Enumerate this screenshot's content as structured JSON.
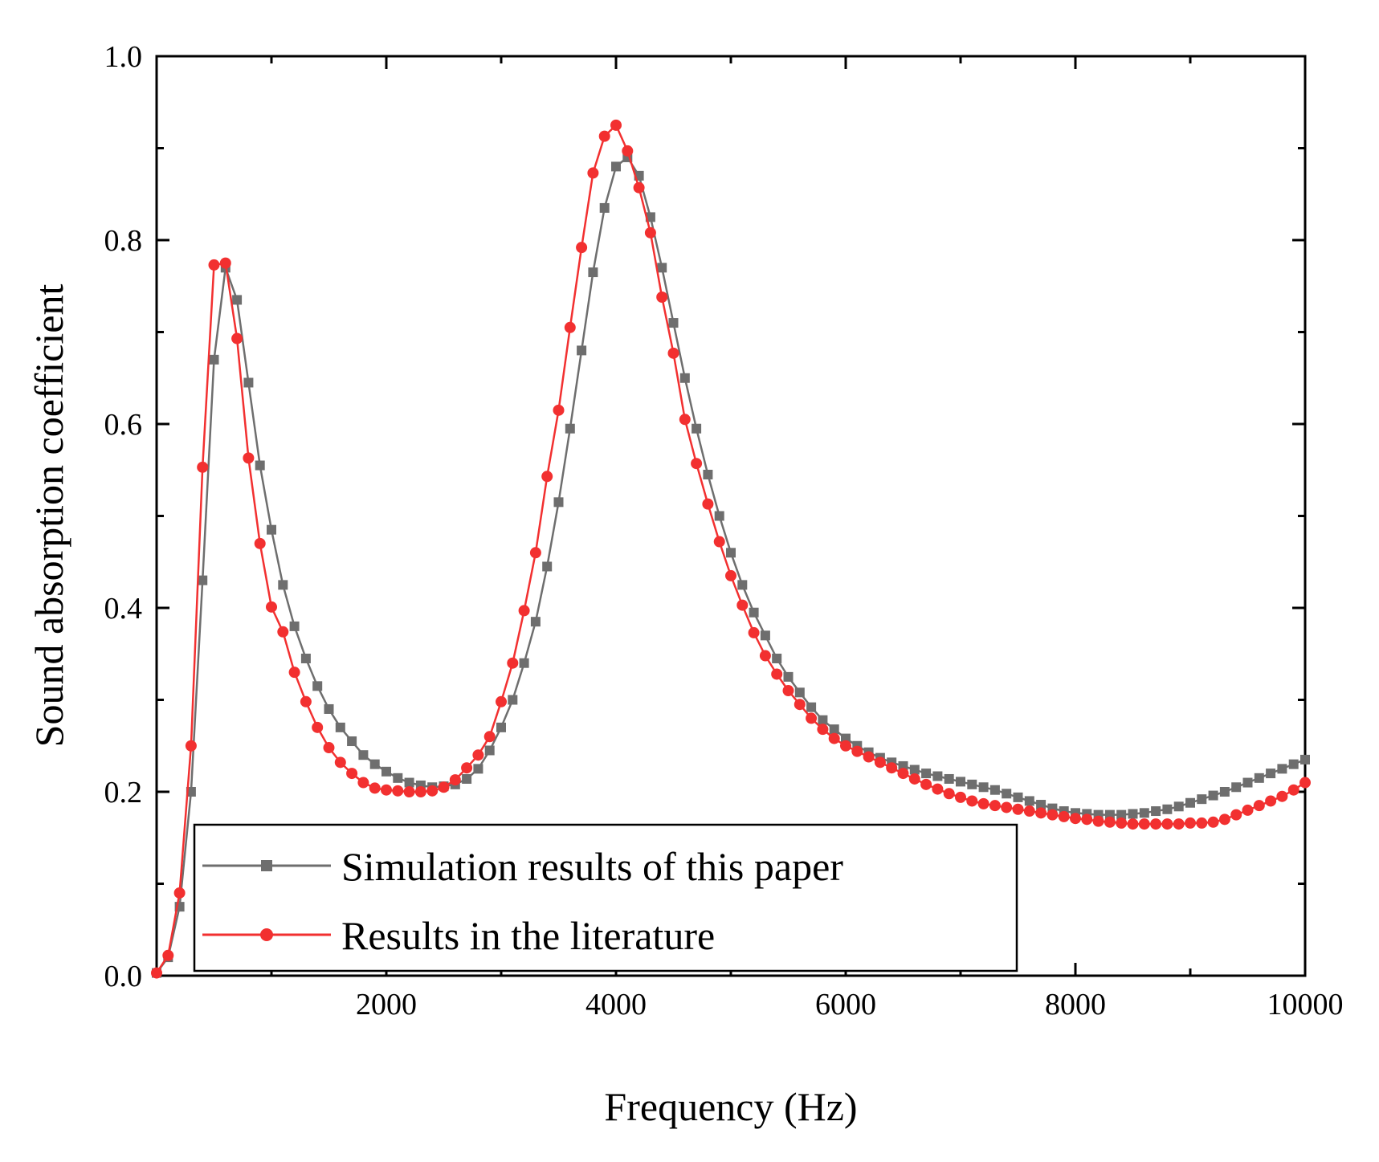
{
  "chart_data": {
    "type": "line",
    "title": "",
    "xlabel": "Frequency (Hz)",
    "ylabel": "Sound absorption coefficient",
    "xlim": [
      0,
      10000
    ],
    "ylim": [
      0.0,
      1.0
    ],
    "xticks": [
      2000,
      4000,
      6000,
      8000,
      10000
    ],
    "xtick_labels": [
      "2000",
      "4000",
      "6000",
      "8000",
      "10000"
    ],
    "yticks": [
      0.0,
      0.2,
      0.4,
      0.6,
      0.8,
      1.0
    ],
    "ytick_labels": [
      "0.0",
      "0.2",
      "0.4",
      "0.6",
      "0.8",
      "1.0"
    ],
    "legend_position": "bottom-left",
    "series": [
      {
        "name": "Simulation results of this paper",
        "color": "#6e6e6e",
        "marker": "square",
        "x": [
          0,
          100,
          200,
          300,
          400,
          500,
          600,
          700,
          800,
          900,
          1000,
          1100,
          1200,
          1300,
          1400,
          1500,
          1600,
          1700,
          1800,
          1900,
          2000,
          2100,
          2200,
          2300,
          2400,
          2500,
          2600,
          2700,
          2800,
          2900,
          3000,
          3100,
          3200,
          3300,
          3400,
          3500,
          3600,
          3700,
          3800,
          3900,
          4000,
          4100,
          4200,
          4300,
          4400,
          4500,
          4600,
          4700,
          4800,
          4900,
          5000,
          5100,
          5200,
          5300,
          5400,
          5500,
          5600,
          5700,
          5800,
          5900,
          6000,
          6100,
          6200,
          6300,
          6400,
          6500,
          6600,
          6700,
          6800,
          6900,
          7000,
          7100,
          7200,
          7300,
          7400,
          7500,
          7600,
          7700,
          7800,
          7900,
          8000,
          8100,
          8200,
          8300,
          8400,
          8500,
          8600,
          8700,
          8800,
          8900,
          9000,
          9100,
          9200,
          9300,
          9400,
          9500,
          9600,
          9700,
          9800,
          9900,
          10000
        ],
        "y": [
          0.003,
          0.02,
          0.075,
          0.2,
          0.43,
          0.67,
          0.77,
          0.735,
          0.645,
          0.555,
          0.485,
          0.425,
          0.38,
          0.345,
          0.315,
          0.29,
          0.27,
          0.255,
          0.24,
          0.23,
          0.222,
          0.215,
          0.21,
          0.207,
          0.205,
          0.206,
          0.208,
          0.214,
          0.225,
          0.245,
          0.27,
          0.3,
          0.34,
          0.385,
          0.445,
          0.515,
          0.595,
          0.68,
          0.765,
          0.835,
          0.88,
          0.89,
          0.87,
          0.825,
          0.77,
          0.71,
          0.65,
          0.595,
          0.545,
          0.5,
          0.46,
          0.425,
          0.395,
          0.37,
          0.345,
          0.325,
          0.308,
          0.292,
          0.278,
          0.268,
          0.258,
          0.25,
          0.243,
          0.237,
          0.232,
          0.228,
          0.224,
          0.22,
          0.217,
          0.214,
          0.211,
          0.208,
          0.205,
          0.202,
          0.198,
          0.194,
          0.19,
          0.186,
          0.182,
          0.179,
          0.177,
          0.176,
          0.175,
          0.175,
          0.175,
          0.176,
          0.177,
          0.179,
          0.181,
          0.184,
          0.188,
          0.192,
          0.196,
          0.2,
          0.205,
          0.21,
          0.215,
          0.22,
          0.225,
          0.23,
          0.235
        ]
      },
      {
        "name": "Results in the literature",
        "color": "#f23030",
        "marker": "circle",
        "x": [
          0,
          100,
          200,
          300,
          400,
          500,
          600,
          700,
          800,
          900,
          1000,
          1100,
          1200,
          1300,
          1400,
          1500,
          1600,
          1700,
          1800,
          1900,
          2000,
          2100,
          2200,
          2300,
          2400,
          2500,
          2600,
          2700,
          2800,
          2900,
          3000,
          3100,
          3200,
          3300,
          3400,
          3500,
          3600,
          3700,
          3800,
          3900,
          4000,
          4100,
          4200,
          4300,
          4400,
          4500,
          4600,
          4700,
          4800,
          4900,
          5000,
          5100,
          5200,
          5300,
          5400,
          5500,
          5600,
          5700,
          5800,
          5900,
          6000,
          6100,
          6200,
          6300,
          6400,
          6500,
          6600,
          6700,
          6800,
          6900,
          7000,
          7100,
          7200,
          7300,
          7400,
          7500,
          7600,
          7700,
          7800,
          7900,
          8000,
          8100,
          8200,
          8300,
          8400,
          8500,
          8600,
          8700,
          8800,
          8900,
          9000,
          9100,
          9200,
          9300,
          9400,
          9500,
          9600,
          9700,
          9800,
          9900,
          10000
        ],
        "y": [
          0.003,
          0.022,
          0.09,
          0.25,
          0.553,
          0.773,
          0.775,
          0.693,
          0.563,
          0.47,
          0.401,
          0.374,
          0.33,
          0.298,
          0.27,
          0.248,
          0.232,
          0.22,
          0.21,
          0.204,
          0.202,
          0.201,
          0.2,
          0.2,
          0.201,
          0.205,
          0.213,
          0.226,
          0.24,
          0.26,
          0.298,
          0.34,
          0.397,
          0.46,
          0.543,
          0.615,
          0.705,
          0.792,
          0.873,
          0.913,
          0.925,
          0.897,
          0.857,
          0.808,
          0.738,
          0.677,
          0.605,
          0.557,
          0.513,
          0.472,
          0.435,
          0.403,
          0.373,
          0.348,
          0.328,
          0.31,
          0.295,
          0.28,
          0.268,
          0.258,
          0.25,
          0.244,
          0.238,
          0.232,
          0.226,
          0.22,
          0.214,
          0.208,
          0.203,
          0.198,
          0.194,
          0.19,
          0.187,
          0.185,
          0.183,
          0.181,
          0.179,
          0.177,
          0.175,
          0.173,
          0.171,
          0.17,
          0.168,
          0.167,
          0.166,
          0.165,
          0.165,
          0.165,
          0.165,
          0.165,
          0.166,
          0.166,
          0.167,
          0.17,
          0.175,
          0.18,
          0.185,
          0.19,
          0.195,
          0.202,
          0.21
        ]
      }
    ]
  }
}
